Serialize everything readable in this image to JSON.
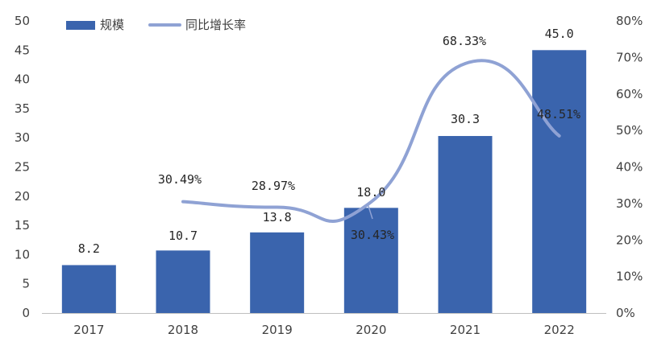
{
  "chart_data": {
    "type": "bar",
    "categories": [
      "2017",
      "2018",
      "2019",
      "2020",
      "2021",
      "2022"
    ],
    "series": [
      {
        "name": "规模",
        "type": "bar",
        "axis": "left",
        "values": [
          8.2,
          10.7,
          13.8,
          18.0,
          30.3,
          45.0
        ],
        "labels": [
          "8.2",
          "10.7",
          "13.8",
          "18.0",
          "30.3",
          "45.0"
        ],
        "color": "#3a64ad"
      },
      {
        "name": "同比增长率",
        "type": "line",
        "axis": "right",
        "values": [
          null,
          30.49,
          28.97,
          30.43,
          68.33,
          48.51
        ],
        "labels": [
          "",
          "30.49%",
          "28.97%",
          "30.43%",
          "68.33%",
          "48.51%"
        ],
        "color": "#8fa2d4"
      }
    ],
    "y_left": {
      "min": 0,
      "max": 50,
      "ticks": [
        "0",
        "5",
        "10",
        "15",
        "20",
        "25",
        "30",
        "35",
        "40",
        "45",
        "50"
      ]
    },
    "y_right": {
      "min": 0,
      "max": 80,
      "ticks": [
        "0%",
        "10%",
        "20%",
        "30%",
        "40%",
        "50%",
        "60%",
        "70%",
        "80%"
      ]
    },
    "grid": false,
    "legend_position": "top-left"
  }
}
